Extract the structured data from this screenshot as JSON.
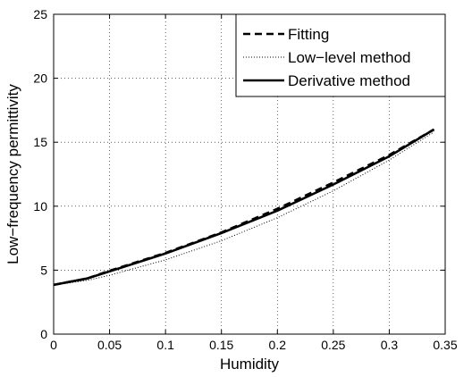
{
  "chart_data": {
    "type": "line",
    "xlabel": "Humidity",
    "ylabel": "Low−frequency permittivity",
    "xlim": [
      0,
      0.35
    ],
    "ylim": [
      0,
      25
    ],
    "xticks": [
      "0",
      "0.05",
      "0.1",
      "0.15",
      "0.2",
      "0.25",
      "0.3",
      "0.35"
    ],
    "yticks": [
      "0",
      "5",
      "10",
      "15",
      "20",
      "25"
    ],
    "grid": true,
    "legend_position": "top-right",
    "x": [
      0,
      0.03,
      0.05,
      0.1,
      0.15,
      0.2,
      0.25,
      0.3,
      0.34
    ],
    "series": [
      {
        "name": "Fitting",
        "style": "dashed",
        "values": [
          3.85,
          4.35,
          4.95,
          6.35,
          7.95,
          9.8,
          11.85,
          14.0,
          16.0
        ]
      },
      {
        "name": "Low−level method",
        "style": "dotted",
        "values": [
          3.85,
          4.2,
          4.6,
          5.8,
          7.3,
          9.1,
          11.2,
          13.6,
          15.8
        ]
      },
      {
        "name": "Derivative method",
        "style": "solid",
        "values": [
          3.85,
          4.35,
          4.9,
          6.3,
          7.9,
          9.65,
          11.7,
          13.9,
          16.0
        ]
      }
    ]
  }
}
